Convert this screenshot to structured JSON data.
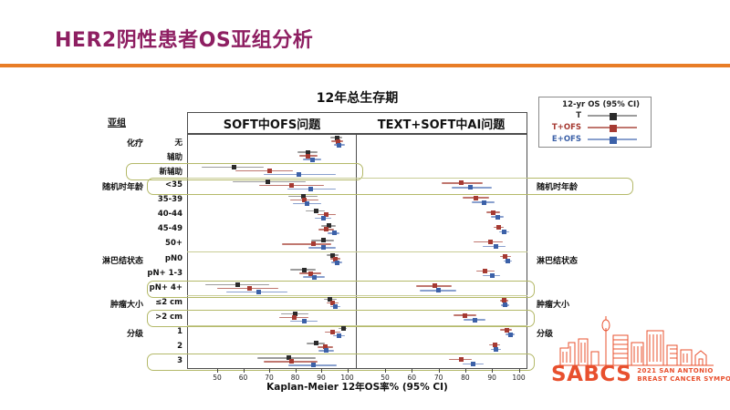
{
  "slide": {
    "title": "HER2阴性患者OS亚组分析",
    "title_color": "#8e1f62",
    "rule_color": "#e87d26"
  },
  "chart": {
    "title": "12年总生存期",
    "subgroup_header": "亚组",
    "xlabel": "Kaplan-Meier  12年OS率% (95% CI)",
    "panels": [
      {
        "title": "SOFT中OFS问题",
        "ticks": [
          50,
          60,
          70,
          80,
          90,
          100
        ]
      },
      {
        "title": "TEXT+SOFT中AI问题",
        "ticks": [
          50,
          60,
          70,
          80,
          90,
          100
        ]
      }
    ],
    "legend": {
      "title": "12-yr OS (95% CI)",
      "entries": [
        {
          "label": "T",
          "color": "#2b2b2b",
          "line": "#9c9c9c"
        },
        {
          "label": "T+OFS",
          "color": "#a63a32",
          "line": "#c0776f"
        },
        {
          "label": "E+OFS",
          "color": "#3c61a8",
          "line": "#89a0ce"
        }
      ]
    }
  },
  "chart_data": {
    "type": "forest",
    "title": "12年总生存期",
    "xlabel": "Kaplan-Meier 12年OS率% (95% CI)",
    "x_ticks": [
      50,
      60,
      70,
      80,
      90,
      100
    ],
    "value_format": "[estimate, ci_low, ci_high] in percent",
    "series_left": [
      "T",
      "T+OFS",
      "E+OFS"
    ],
    "series_right": [
      "T+OFS",
      "E+OFS"
    ],
    "rows": [
      {
        "label": "无",
        "category": "化疗",
        "highlight": null,
        "right_category": null,
        "left": {
          "T": [
            96,
            93.5,
            98
          ],
          "T+OFS": [
            96.5,
            94,
            98.5
          ],
          "E+OFS": [
            97,
            95,
            99
          ]
        },
        "right": null
      },
      {
        "label": "辅助",
        "category": null,
        "highlight": null,
        "right_category": null,
        "left": {
          "T": [
            85,
            81,
            88.5
          ],
          "T+OFS": [
            85,
            81.5,
            88.5
          ],
          "E+OFS": [
            86.5,
            83,
            90
          ]
        },
        "right": null
      },
      {
        "label": "新辅助",
        "category": null,
        "highlight": "left",
        "right_category": null,
        "left": {
          "T": [
            56.5,
            44,
            68
          ],
          "T+OFS": [
            70,
            57,
            79
          ],
          "E+OFS": [
            81.5,
            68,
            95.5
          ]
        },
        "right": null
      },
      {
        "label": "<35",
        "category": "随机时年龄",
        "highlight": "full",
        "right_category": "随机时年龄",
        "left": {
          "T": [
            69.5,
            56,
            84
          ],
          "T+OFS": [
            78.5,
            66,
            91
          ],
          "E+OFS": [
            86,
            77,
            95.5
          ]
        },
        "right": {
          "T+OFS": [
            78.5,
            71,
            86.5
          ],
          "E+OFS": [
            82,
            75,
            90
          ]
        }
      },
      {
        "label": "35-39",
        "category": null,
        "highlight": null,
        "right_category": null,
        "left": {
          "T": [
            83,
            77.5,
            88.5
          ],
          "T+OFS": [
            83.5,
            78,
            89
          ],
          "E+OFS": [
            84.5,
            79,
            90
          ]
        },
        "right": {
          "T+OFS": [
            84,
            79,
            89
          ],
          "E+OFS": [
            87,
            82.5,
            91
          ]
        }
      },
      {
        "label": "40-44",
        "category": null,
        "highlight": null,
        "right_category": null,
        "left": {
          "T": [
            88,
            84,
            91.5
          ],
          "T+OFS": [
            92,
            88.5,
            95.5
          ],
          "E+OFS": [
            91,
            87.5,
            94
          ]
        },
        "right": {
          "T+OFS": [
            90.5,
            88,
            93
          ],
          "E+OFS": [
            92,
            89.5,
            94.5
          ]
        }
      },
      {
        "label": "45-49",
        "category": null,
        "highlight": null,
        "right_category": null,
        "left": {
          "T": [
            93,
            90,
            95.5
          ],
          "T+OFS": [
            92,
            89,
            95
          ],
          "E+OFS": [
            95,
            92.5,
            97
          ]
        },
        "right": {
          "T+OFS": [
            92.5,
            90.5,
            94.5
          ],
          "E+OFS": [
            94.5,
            92.5,
            96.5
          ]
        }
      },
      {
        "label": "50+",
        "category": null,
        "highlight": null,
        "right_category": null,
        "left": {
          "T": [
            91,
            86,
            95
          ],
          "T+OFS": [
            87,
            75,
            94
          ],
          "E+OFS": [
            91,
            85,
            95.5
          ]
        },
        "right": {
          "T+OFS": [
            89.5,
            83,
            94
          ],
          "E+OFS": [
            91.5,
            86.5,
            95
          ]
        }
      },
      {
        "label": "pN0",
        "category": "淋巴结状态",
        "highlight": null,
        "right_category": "淋巴结状态",
        "left": {
          "T": [
            94.5,
            92,
            96.5
          ],
          "T+OFS": [
            95.5,
            93.5,
            97.5
          ],
          "E+OFS": [
            96,
            94,
            98
          ]
        },
        "right": {
          "T+OFS": [
            95,
            93,
            97
          ],
          "E+OFS": [
            96,
            94.5,
            97.5
          ]
        }
      },
      {
        "label": "pN+ 1-3",
        "category": null,
        "highlight": null,
        "right_category": null,
        "left": {
          "T": [
            83.5,
            78,
            88
          ],
          "T+OFS": [
            86,
            81.5,
            90
          ],
          "E+OFS": [
            87.5,
            83,
            91.5
          ]
        },
        "right": {
          "T+OFS": [
            87.5,
            84,
            91
          ],
          "E+OFS": [
            90,
            86.5,
            93
          ]
        }
      },
      {
        "label": "pN+ 4+",
        "category": null,
        "highlight": "mid",
        "right_category": null,
        "left": {
          "T": [
            58,
            45.5,
            70
          ],
          "T+OFS": [
            62.5,
            50,
            73.5
          ],
          "E+OFS": [
            66,
            53.5,
            77
          ]
        },
        "right": {
          "T+OFS": [
            68.5,
            61.5,
            75
          ],
          "E+OFS": [
            70,
            63,
            76.5
          ]
        }
      },
      {
        "label": "≤2 cm",
        "category": "肿瘤大小",
        "highlight": null,
        "right_category": "肿瘤大小",
        "left": {
          "T": [
            93.5,
            91,
            96
          ],
          "T+OFS": [
            94.5,
            92,
            96.5
          ],
          "E+OFS": [
            95.5,
            93.5,
            97.5
          ]
        },
        "right": {
          "T+OFS": [
            94.5,
            93,
            96
          ],
          "E+OFS": [
            95,
            93.5,
            96.5
          ]
        }
      },
      {
        "label": ">2 cm",
        "category": null,
        "highlight": "mid",
        "right_category": null,
        "left": {
          "T": [
            80,
            74.5,
            85
          ],
          "T+OFS": [
            79.5,
            74,
            85
          ],
          "E+OFS": [
            83.5,
            78,
            88.5
          ]
        },
        "right": {
          "T+OFS": [
            80,
            75.5,
            84
          ],
          "E+OFS": [
            83.5,
            79.5,
            87.5
          ]
        }
      },
      {
        "label": "1",
        "category": "分级",
        "highlight": null,
        "right_category": "分级",
        "left": {
          "T": [
            98.5,
            96.5,
            100
          ],
          "T+OFS": [
            94.5,
            91.5,
            97.5
          ],
          "E+OFS": [
            97,
            94.5,
            99
          ]
        },
        "right": {
          "T+OFS": [
            95.5,
            93,
            97.5
          ],
          "E+OFS": [
            97,
            95,
            98.5
          ]
        }
      },
      {
        "label": "2",
        "category": null,
        "highlight": null,
        "right_category": null,
        "left": {
          "T": [
            88,
            84.5,
            91.5
          ],
          "T+OFS": [
            91.5,
            88.5,
            94.5
          ],
          "E+OFS": [
            92,
            89,
            95
          ]
        },
        "right": {
          "T+OFS": [
            91,
            89,
            93
          ],
          "E+OFS": [
            91.5,
            89.5,
            93.5
          ]
        }
      },
      {
        "label": "3",
        "category": null,
        "highlight": "mid",
        "right_category": null,
        "left": {
          "T": [
            77.5,
            65.5,
            88
          ],
          "T+OFS": [
            78.5,
            68,
            88.5
          ],
          "E+OFS": [
            87,
            77.5,
            96
          ]
        },
        "right": {
          "T+OFS": [
            78.5,
            74,
            82.5
          ],
          "E+OFS": [
            83,
            79,
            87
          ]
        }
      }
    ]
  },
  "logo": {
    "acronym": "SABCS",
    "line1": "2021 SAN ANTONIO",
    "line2": "BREAST CANCER SYMPOSIUM",
    "color": "#e8502e"
  }
}
